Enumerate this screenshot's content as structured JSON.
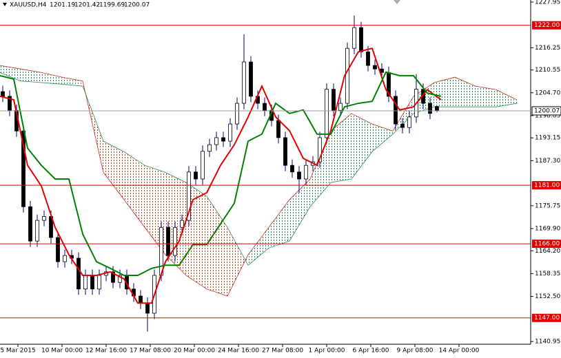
{
  "chart_data": {
    "type": "candlestick",
    "symbol": "XAUUSD,H4",
    "ylim": [
      1140.25,
      1228.48
    ],
    "yticks": [
      1227.95,
      1216.25,
      1210.55,
      {
        "value": 1204.7,
        "label": "1204.70"
      },
      1198.85,
      1193.15,
      {
        "value": 1187.3,
        "label": "1187.30"
      },
      1175.75,
      {
        "value": 1169.9,
        "label": "1169.90"
      },
      {
        "value": 1164.2,
        "label": "1164.20"
      },
      1158.35,
      {
        "value": 1152.5,
        "label": "1152.50"
      },
      1140.95
    ],
    "levels": [
      {
        "value": 1222,
        "label": "1222.00"
      },
      {
        "value": 1181,
        "label": "1181.00"
      },
      {
        "value": 1166,
        "label": "1166.00"
      },
      {
        "value": 1147,
        "label": "1147.00"
      }
    ],
    "level_color": "#e00000",
    "x_labels": [
      "5 Mar 2015",
      "10 Mar 00:00",
      "12 Mar 16:00",
      "17 Mar 08:00",
      "20 Mar 00:00",
      "24 Mar 16:00",
      "27 Mar 08:00",
      "1 Apr 00:00",
      "6 Apr 16:00",
      "9 Apr 08:00",
      "14 Apr 00:00"
    ],
    "candles": {
      "open": [
        1205.0,
        1203.8,
        1200.2,
        1194.9,
        1175.5,
        1166.7,
        1172.0,
        1173.0,
        1167.6,
        1161.4,
        1163.0,
        1162.3,
        1154.4,
        1157.9,
        1154.4,
        1157.9,
        1158.8,
        1156.1,
        1157.9,
        1154.4,
        1152.6,
        1150.8,
        1148.2,
        1157.9,
        1170.2,
        1163.0,
        1170.2,
        1172.0,
        1184.4,
        1182.6,
        1189.7,
        1191.4,
        1193.2,
        1192.3,
        1196.7,
        1202.0,
        1212.6,
        1203.8,
        1202.0,
        1200.2,
        1197.6,
        1193.2,
        1186.1,
        1184.4,
        1182.6,
        1186.1,
        1187.0,
        1193.2,
        1205.6,
        1200.2,
        1202.0,
        1216.1,
        1221.4,
        1215.2,
        1211.7,
        1210.8,
        1209.9,
        1203.8,
        1196.7,
        1195.8,
        1198.5,
        1205.6,
        1202.0,
        1201.19
      ],
      "high": [
        1206.5,
        1205.3,
        1201.7,
        1196.4,
        1177.0,
        1173.5,
        1174.5,
        1174.5,
        1169.1,
        1164.5,
        1164.5,
        1163.8,
        1159.4,
        1159.4,
        1159.4,
        1160.3,
        1160.3,
        1159.4,
        1159.4,
        1155.9,
        1154.1,
        1152.3,
        1159.4,
        1171.7,
        1171.7,
        1171.7,
        1173.5,
        1185.9,
        1185.9,
        1191.2,
        1192.9,
        1194.7,
        1194.7,
        1198.2,
        1203.5,
        1219.7,
        1214.1,
        1205.3,
        1203.5,
        1201.7,
        1199.1,
        1194.7,
        1187.6,
        1185.9,
        1187.6,
        1188.5,
        1194.7,
        1207.1,
        1207.1,
        1203.5,
        1217.6,
        1224.5,
        1222.9,
        1216.7,
        1213.2,
        1212.3,
        1211.4,
        1205.3,
        1198.2,
        1200.0,
        1209.5,
        1207.1,
        1203.5,
        1201.42
      ],
      "low": [
        1202.3,
        1198.7,
        1193.4,
        1174.0,
        1165.2,
        1165.2,
        1170.5,
        1166.1,
        1159.9,
        1159.9,
        1160.8,
        1152.9,
        1152.9,
        1152.9,
        1152.9,
        1156.4,
        1154.6,
        1154.6,
        1152.9,
        1151.1,
        1149.3,
        1143.5,
        1146.7,
        1156.4,
        1161.5,
        1161.5,
        1168.7,
        1170.5,
        1181.1,
        1181.1,
        1188.2,
        1189.9,
        1190.8,
        1190.8,
        1195.2,
        1200.5,
        1202.3,
        1200.5,
        1198.7,
        1196.1,
        1191.7,
        1184.6,
        1182.9,
        1179.0,
        1181.1,
        1184.6,
        1185.5,
        1191.7,
        1198.7,
        1198.7,
        1200.5,
        1214.6,
        1213.7,
        1210.2,
        1209.3,
        1208.4,
        1202.3,
        1195.2,
        1194.3,
        1194.3,
        1197.0,
        1200.5,
        1197.9,
        1199.69
      ],
      "close": [
        1203.8,
        1200.2,
        1194.9,
        1175.5,
        1166.7,
        1172.0,
        1173.0,
        1167.6,
        1161.4,
        1163.0,
        1162.3,
        1154.4,
        1157.9,
        1154.4,
        1157.9,
        1158.8,
        1156.1,
        1157.9,
        1154.4,
        1152.6,
        1150.8,
        1148.2,
        1157.9,
        1170.2,
        1163.0,
        1170.2,
        1172.0,
        1184.4,
        1182.6,
        1189.7,
        1191.4,
        1193.2,
        1192.3,
        1196.7,
        1202.0,
        1212.6,
        1203.8,
        1202.0,
        1200.2,
        1197.6,
        1193.2,
        1186.1,
        1184.4,
        1182.6,
        1186.1,
        1187.0,
        1193.2,
        1205.6,
        1200.2,
        1202.0,
        1216.1,
        1221.4,
        1215.2,
        1211.7,
        1210.8,
        1209.9,
        1203.8,
        1196.7,
        1195.8,
        1198.5,
        1205.6,
        1202.0,
        1199.4,
        1200.07
      ]
    },
    "bull_color": "#ffffff",
    "bear_color": "#000000",
    "wick_color": "#000080",
    "tenkan": {
      "color": "#e00000",
      "values": [
        1203.8,
        1202.9,
        1186.1,
        1180.8,
        1170.2,
        1163.2,
        1157.9,
        1157.9,
        1158.8,
        1157.0,
        1150.8,
        1150.8,
        1161.4,
        1166.7,
        1177.3,
        1179.1,
        1186.1,
        1191.4,
        1198.5,
        1206.4,
        1198.5,
        1195.0,
        1187.9,
        1186.1,
        1195.0,
        1209.1,
        1215.2,
        1216.1,
        1205.5,
        1200.3,
        1201.1,
        1205.5,
        1202.9
      ]
    },
    "kijun": {
      "color": "#008000",
      "values": [
        1209.1,
        1208.2,
        1190.5,
        1186.1,
        1182.6,
        1182.6,
        1168.5,
        1161.4,
        1159.7,
        1157.9,
        1157.9,
        1159.7,
        1160.5,
        1160.5,
        1165.8,
        1165.8,
        1171.1,
        1176.4,
        1192.3,
        1194.1,
        1202.0,
        1199.4,
        1200.3,
        1194.1,
        1194.1,
        1201.1,
        1202.0,
        1202.5,
        1210.0,
        1209.1,
        1209.1,
        1204.6,
        1203.8
      ]
    },
    "span_a": {
      "color": "#c03020",
      "values": [
        1211.7,
        1210.8,
        1209.9,
        1208.7,
        1207.7,
        1184.3,
        1177.3,
        1170.2,
        1163.2,
        1157.9,
        1154.4,
        1152.6,
        1163.2,
        1170.2,
        1177.3,
        1182.6,
        1194.9,
        1199.4,
        1196.7,
        1194.9,
        1203.8,
        1207.3,
        1208.7,
        1206.4,
        1205.5,
        1202.9
      ]
    },
    "span_b": {
      "color": "#2e8b57",
      "values": [
        1209.9,
        1207.7,
        1207.3,
        1206.9,
        1206.4,
        1192.3,
        1189.6,
        1186.1,
        1184.3,
        1181.7,
        1178.2,
        1170.2,
        1160.5,
        1164.9,
        1166.7,
        1175.5,
        1181.7,
        1182.6,
        1189.6,
        1194.1,
        1199.4,
        1201.1,
        1201.1,
        1201.1,
        1201.1,
        1202.0
      ]
    },
    "price_line_color": "#9a9a9a"
  }
}
